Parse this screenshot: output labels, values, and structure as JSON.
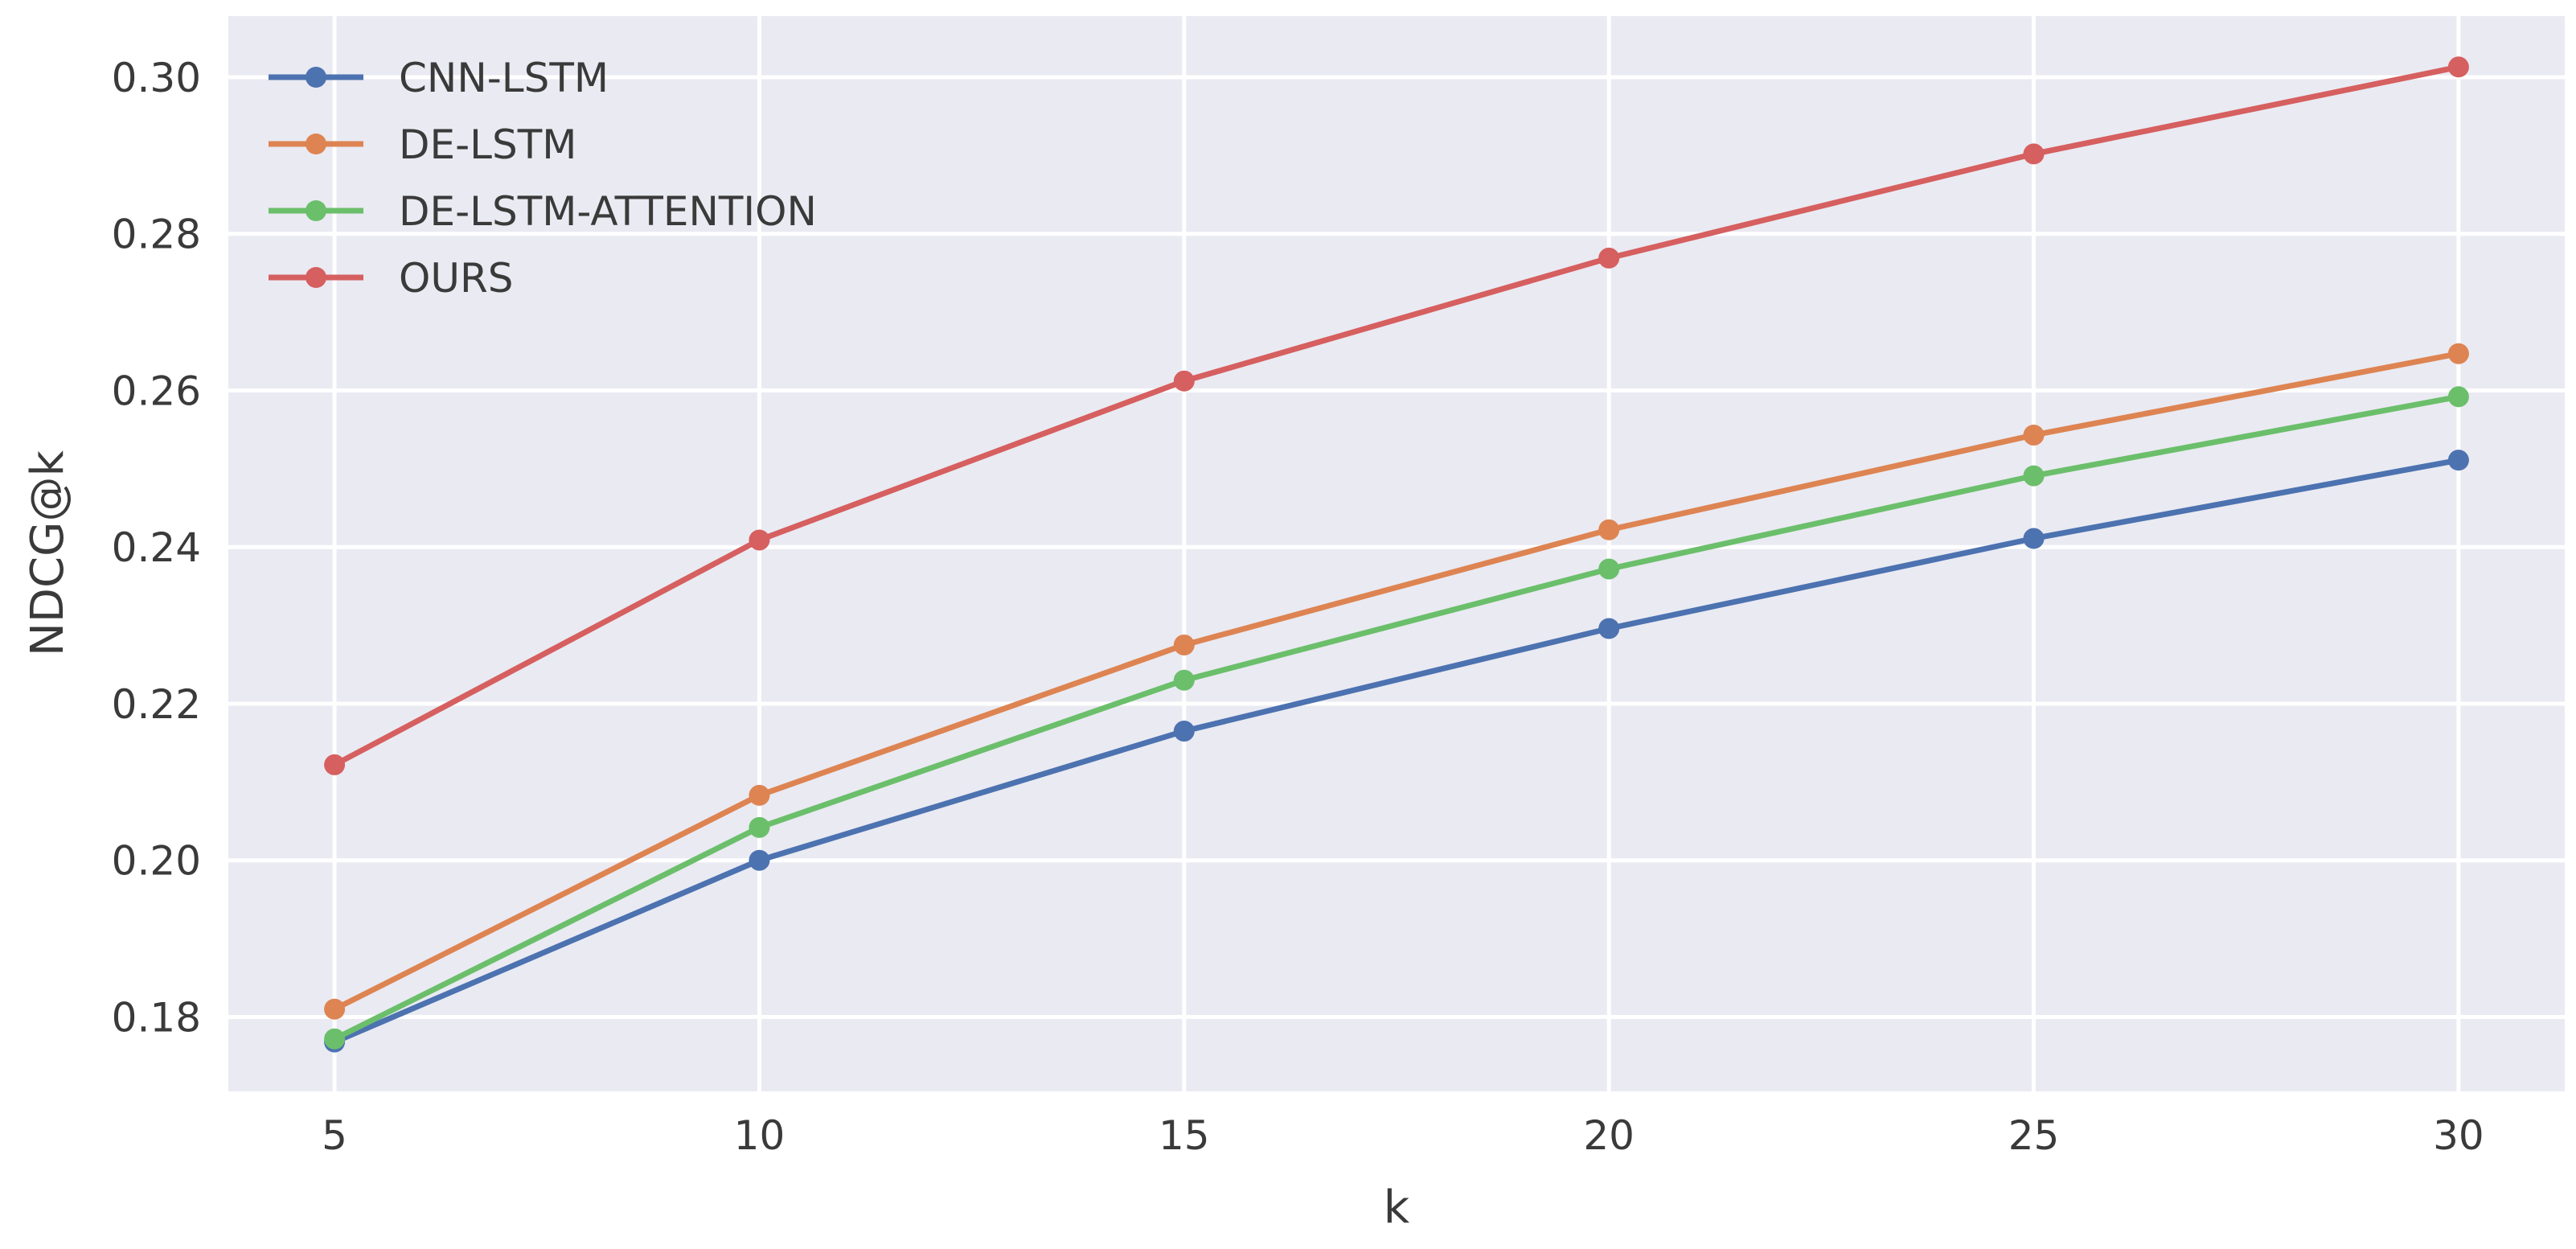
{
  "chart_data": {
    "type": "line",
    "title": "",
    "xlabel": "k",
    "ylabel": "NDCG@k",
    "x": [
      5,
      10,
      15,
      20,
      25,
      30
    ],
    "xticks": [
      "5",
      "10",
      "15",
      "20",
      "25",
      "30"
    ],
    "yticks": [
      "0.18",
      "0.20",
      "0.22",
      "0.24",
      "0.26",
      "0.28",
      "0.30"
    ],
    "ytick_values": [
      0.18,
      0.2,
      0.22,
      0.24,
      0.26,
      0.28,
      0.3
    ],
    "xlim": [
      3.75,
      31.25
    ],
    "ylim": [
      0.1705,
      0.3078
    ],
    "grid": true,
    "legend_position": "top-left",
    "background_color": "#eaeaf2",
    "series": [
      {
        "name": "CNN-LSTM",
        "color": "#4c72b0",
        "values": [
          0.1768,
          0.2,
          0.2165,
          0.2296,
          0.2411,
          0.2511
        ]
      },
      {
        "name": "DE-LSTM",
        "color": "#dd8452",
        "values": [
          0.181,
          0.2083,
          0.2275,
          0.2422,
          0.2543,
          0.2647
        ]
      },
      {
        "name": "DE-LSTM-ATTENTION",
        "color": "#6bbf6b",
        "values": [
          0.1772,
          0.2042,
          0.223,
          0.2372,
          0.2491,
          0.2592
        ]
      },
      {
        "name": "OURS",
        "color": "#d65f5f",
        "values": [
          0.2122,
          0.2409,
          0.2612,
          0.2769,
          0.2902,
          0.3013
        ]
      }
    ]
  }
}
